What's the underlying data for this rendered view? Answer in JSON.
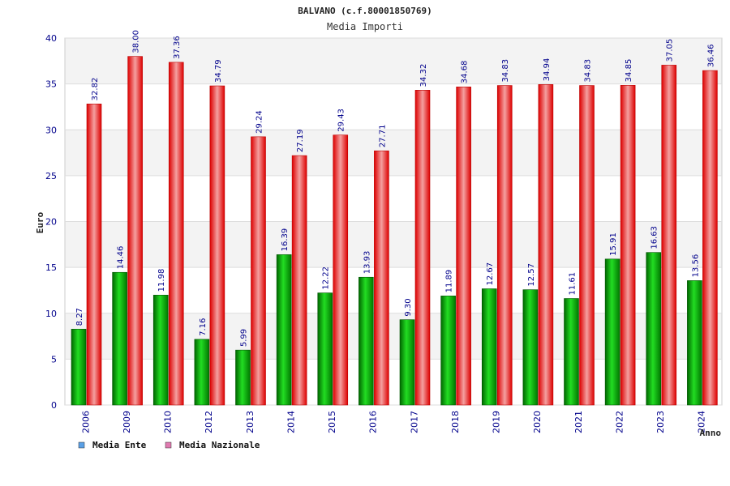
{
  "chart_data": {
    "type": "bar",
    "title": "BALVANO (c.f.80001850769)",
    "subtitle": "Media Importi",
    "xlabel": "Anno",
    "ylabel": "Euro",
    "ylim": [
      0,
      40
    ],
    "yticks": [
      0,
      5,
      10,
      15,
      20,
      25,
      30,
      35,
      40
    ],
    "grid": true,
    "legend_position": "bottom-left",
    "categories": [
      "2006",
      "2009",
      "2010",
      "2012",
      "2013",
      "2014",
      "2015",
      "2016",
      "2017",
      "2018",
      "2019",
      "2020",
      "2021",
      "2022",
      "2023",
      "2024"
    ],
    "series": [
      {
        "name": "Media Ente",
        "legend_color": "#5aa0e6",
        "bar_color": "#00aa00",
        "values": [
          8.27,
          14.46,
          11.98,
          7.16,
          5.99,
          16.39,
          12.22,
          13.93,
          9.3,
          11.89,
          12.67,
          12.57,
          11.61,
          15.91,
          16.63,
          13.56
        ],
        "labels": [
          "8.27",
          "14.46",
          "11.98",
          "7.16",
          "5.99",
          "16.39",
          "12.22",
          "13.93",
          "9.30",
          "11.89",
          "12.67",
          "12.57",
          "11.61",
          "15.91",
          "16.63",
          "13.56"
        ]
      },
      {
        "name": "Media Nazionale",
        "legend_color": "#e07ab0",
        "bar_color": "#ee1111",
        "values": [
          32.82,
          38.0,
          37.36,
          34.79,
          29.24,
          27.19,
          29.43,
          27.71,
          34.32,
          34.68,
          34.83,
          34.94,
          34.83,
          34.85,
          37.05,
          36.46
        ],
        "labels": [
          "32.82",
          "38.00",
          "37.36",
          "34.79",
          "29.24",
          "27.19",
          "29.43",
          "27.71",
          "34.32",
          "34.68",
          "34.83",
          "34.94",
          "34.83",
          "34.85",
          "37.05",
          "36.46"
        ]
      }
    ]
  }
}
